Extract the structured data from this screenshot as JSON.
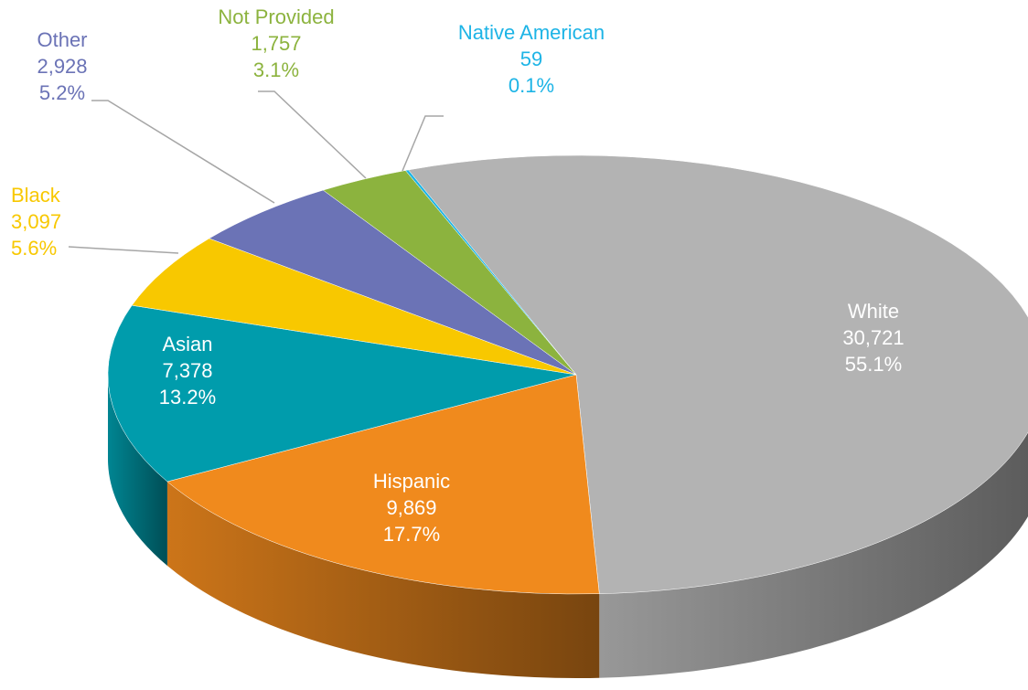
{
  "chart_data": {
    "type": "pie",
    "categories": [
      "White",
      "Hispanic",
      "Asian",
      "Black",
      "Other",
      "Not Provided",
      "Native American"
    ],
    "values": [
      30721,
      9869,
      7378,
      3097,
      2928,
      1757,
      59
    ],
    "value_labels": [
      "30,721",
      "9,869",
      "7,378",
      "3,097",
      "2,928",
      "1,757",
      "59"
    ],
    "percents": [
      55.1,
      17.7,
      13.2,
      5.6,
      5.2,
      3.1,
      0.1
    ],
    "percent_labels": [
      "55.1%",
      "17.7%",
      "13.2%",
      "5.6%",
      "5.2%",
      "3.1%",
      "0.1%"
    ],
    "colors": [
      "#b3b3b3",
      "#f08a1d",
      "#009cac",
      "#f8c800",
      "#6b73b6",
      "#8cb33e",
      "#1db4e6"
    ]
  }
}
